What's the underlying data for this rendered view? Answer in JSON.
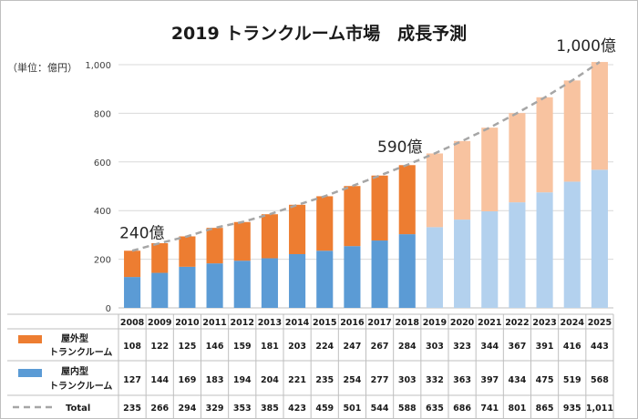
{
  "title": "2019 トランクルーム市場　成長予測",
  "unit_label": "（単位：億円）",
  "chart_data": {
    "type": "bar",
    "stacked": true,
    "categories": [
      "2008",
      "2009",
      "2010",
      "2011",
      "2012",
      "2013",
      "2014",
      "2015",
      "2016",
      "2017",
      "2018",
      "2019",
      "2020",
      "2021",
      "2022",
      "2023",
      "2024",
      "2025"
    ],
    "forecast_start_index": 11,
    "ylim": [
      0,
      1000
    ],
    "yticks": [
      "0",
      "200",
      "400",
      "600",
      "800",
      "1,000"
    ],
    "ytick_values": [
      0,
      200,
      400,
      600,
      800,
      1000
    ],
    "grid": true,
    "series": [
      {
        "name": "屋内型\nトランクルーム",
        "color": "#5b9bd5",
        "forecast_color": "#b3d1ee",
        "values": [
          127,
          144,
          169,
          183,
          194,
          204,
          221,
          235,
          254,
          277,
          303,
          332,
          363,
          397,
          434,
          475,
          519,
          568
        ]
      },
      {
        "name": "屋外型\nトランクルーム",
        "color": "#ed7d31",
        "forecast_color": "#f8c3a0",
        "values": [
          108,
          122,
          125,
          146,
          159,
          181,
          203,
          224,
          247,
          267,
          284,
          303,
          323,
          344,
          367,
          391,
          416,
          443
        ]
      }
    ],
    "total": {
      "name": "Total",
      "color": "#a6a6a6",
      "values": [
        235,
        266,
        294,
        329,
        353,
        385,
        423,
        459,
        501,
        544,
        588,
        635,
        686,
        741,
        801,
        865,
        935,
        1011
      ],
      "labels": [
        "235",
        "266",
        "294",
        "329",
        "353",
        "385",
        "423",
        "459",
        "501",
        "544",
        "588",
        "635",
        "686",
        "741",
        "801",
        "865",
        "935",
        "1,011"
      ]
    },
    "annotations": [
      {
        "text": "240億",
        "index": 0
      },
      {
        "text": "590億",
        "index": 10
      },
      {
        "text": "1,000億",
        "index": 17
      }
    ],
    "table": {
      "outdoor_label": [
        "屋外型",
        "トランクルーム"
      ],
      "indoor_label": [
        "屋内型",
        "トランクルーム"
      ],
      "total_label": "Total"
    }
  }
}
